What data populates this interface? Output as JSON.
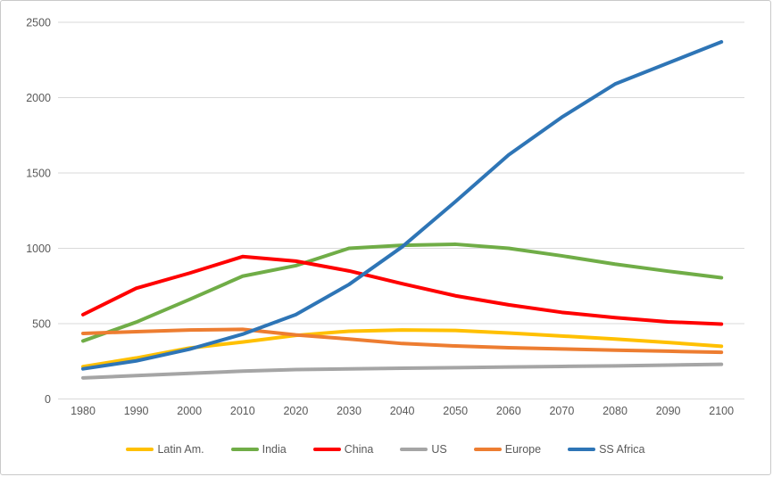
{
  "chart_data": {
    "type": "line",
    "x": [
      1980,
      1990,
      2000,
      2010,
      2020,
      2030,
      2040,
      2050,
      2060,
      2070,
      2080,
      2090,
      2100
    ],
    "series": [
      {
        "name": "Latin Am.",
        "color": "#FFC000",
        "values": [
          215,
          272,
          338,
          378,
          422,
          450,
          458,
          455,
          438,
          418,
          398,
          375,
          350
        ]
      },
      {
        "name": "India",
        "color": "#70AD47",
        "values": [
          385,
          510,
          660,
          815,
          885,
          1000,
          1020,
          1027,
          1000,
          950,
          895,
          848,
          805
        ]
      },
      {
        "name": "China",
        "color": "#FF0000",
        "values": [
          560,
          735,
          835,
          945,
          915,
          850,
          765,
          685,
          625,
          575,
          540,
          512,
          497
        ]
      },
      {
        "name": "US",
        "color": "#A5A5A5",
        "values": [
          140,
          155,
          170,
          185,
          195,
          200,
          204,
          208,
          212,
          216,
          220,
          225,
          230
        ]
      },
      {
        "name": "Europe",
        "color": "#ED7D31",
        "values": [
          435,
          447,
          458,
          462,
          425,
          398,
          368,
          352,
          340,
          332,
          324,
          317,
          310
        ]
      },
      {
        "name": "SS Africa",
        "color": "#2E75B6",
        "values": [
          200,
          253,
          330,
          430,
          560,
          760,
          1010,
          1310,
          1620,
          1870,
          2090,
          2230,
          2370
        ]
      }
    ],
    "yticks": [
      0,
      500,
      1000,
      1500,
      2000,
      2500
    ],
    "ylim": [
      0,
      2500
    ],
    "xlim": [
      1980,
      2100
    ],
    "xlabel": "",
    "ylabel": "",
    "grid": true,
    "legend_position": "bottom",
    "grid_color": "#D9D9D9",
    "tick_color": "#595959"
  }
}
